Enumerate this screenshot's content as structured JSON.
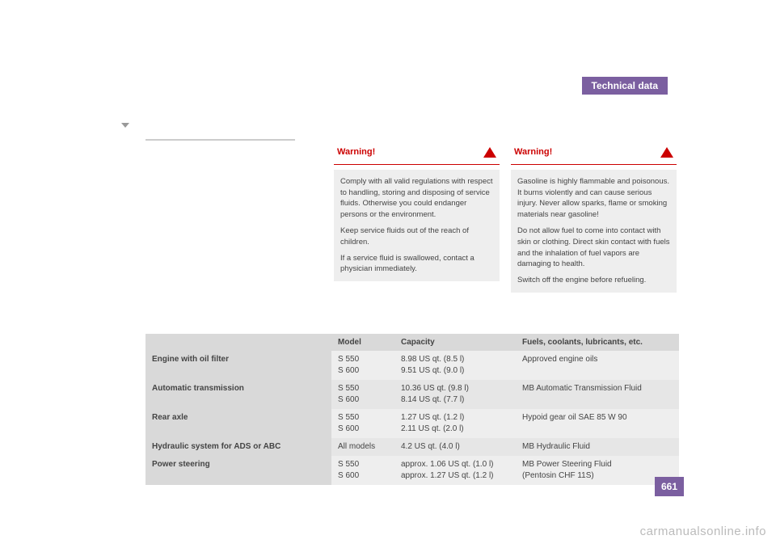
{
  "header": {
    "tab": "Technical data"
  },
  "warning1": {
    "title": "Warning!",
    "p1": "Comply with all valid regulations with respect to handling, storing and disposing of service fluids. Otherwise you could endanger persons or the environment.",
    "p2": "Keep service fluids out of the reach of children.",
    "p3": "If a service fluid is swallowed, contact a physician immediately."
  },
  "warning2": {
    "title": "Warning!",
    "p1": "Gasoline is highly flammable and poisonous. It burns violently and can cause serious injury. Never allow sparks, flame or smoking materials near gasoline!",
    "p2": "Do not allow fuel to come into contact with skin or clothing. Direct skin contact with fuels and the inhalation of fuel vapors are damaging to health.",
    "p3": "Switch off the engine before refueling."
  },
  "table": {
    "headers": {
      "c1": "Model",
      "c2": "Capacity",
      "c3": "Fuels, coolants, lubricants, etc."
    },
    "rows": [
      {
        "label": "Engine with oil filter",
        "model": "S 550\nS 600",
        "capacity": "8.98 US qt. (8.5 l)\n9.51 US qt. (9.0 l)",
        "fluid": "Approved engine oils"
      },
      {
        "label": "Automatic transmission",
        "model": "S 550\nS 600",
        "capacity": "10.36 US qt. (9.8 l)\n8.14 US qt. (7.7 l)",
        "fluid": "MB Automatic Transmission Fluid"
      },
      {
        "label": "Rear axle",
        "model": "S 550\nS 600",
        "capacity": "1.27 US qt. (1.2 l)\n2.11 US qt. (2.0 l)",
        "fluid": "Hypoid gear oil SAE 85 W 90"
      },
      {
        "label": "Hydraulic system for ADS or ABC",
        "model": "All models",
        "capacity": "4.2 US qt. (4.0 l)",
        "fluid": "MB Hydraulic Fluid"
      },
      {
        "label": "Power steering",
        "model": "S 550\nS 600",
        "capacity": "approx. 1.06 US qt. (1.0 l)\napprox. 1.27 US qt. (1.2 l)",
        "fluid": "MB Power Steering Fluid\n(Pentosin CHF 11S)"
      }
    ]
  },
  "page_number": "661",
  "watermark": "carmanualsonline.info"
}
